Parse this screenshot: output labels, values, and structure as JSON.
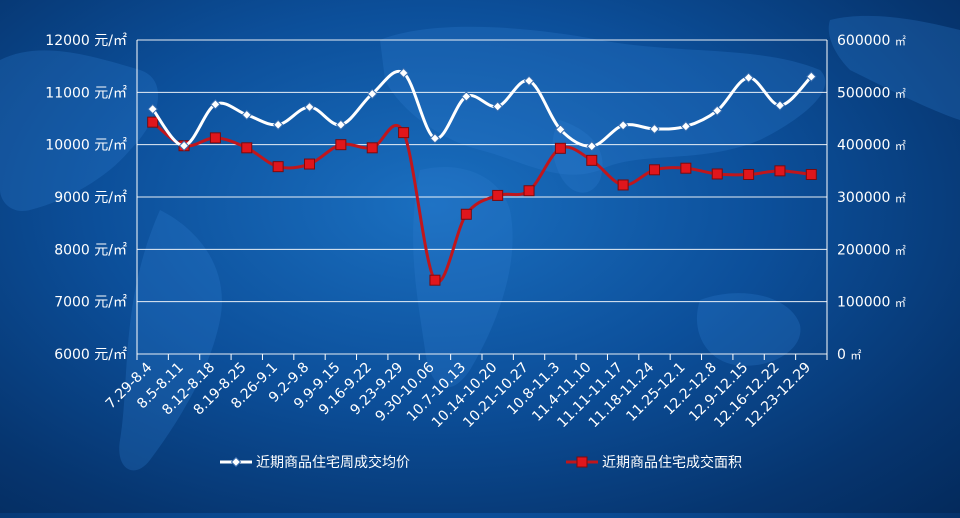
{
  "colors": {
    "background": "#0c4f9a",
    "price_line": "#ffffff",
    "area_line": "#c0161c",
    "area_marker": "#e0161c",
    "grid": "#ffffff"
  },
  "chart_data": {
    "type": "line",
    "categories": [
      "7.29-8.4",
      "8.5-8.11",
      "8.12-8.18",
      "8.19-8.25",
      "8.26-9.1",
      "9.2-9.8",
      "9.9-9.15",
      "9.16-9.22",
      "9.23-9.29",
      "9.30-10.06",
      "10.7-10.13",
      "10.14-10.20",
      "10.21-10.27",
      "10.8-11.3",
      "11.4-11.10",
      "11.11-11.17",
      "11.18-11.24",
      "11.25-12.1",
      "12.2-12.8",
      "12.9-12.15",
      "12.16-12.22",
      "12.23-12.29"
    ],
    "y_left": {
      "ylim": [
        6000,
        12000
      ],
      "ticks": [
        6000,
        7000,
        8000,
        9000,
        10000,
        11000,
        12000
      ],
      "unit": "元/㎡"
    },
    "y_right": {
      "ylim": [
        0,
        600000
      ],
      "ticks": [
        0,
        100000,
        200000,
        300000,
        400000,
        500000,
        600000
      ],
      "unit": "㎡"
    },
    "grid": true,
    "legend_position": "bottom",
    "series": [
      {
        "name": "近期商品住宅周成交均价",
        "axis": "left",
        "marker": "diamond",
        "smooth": true,
        "values": [
          10680,
          9980,
          10770,
          10570,
          10380,
          10720,
          10380,
          10970,
          11370,
          10120,
          10920,
          10730,
          11220,
          10290,
          9970,
          10370,
          10300,
          10350,
          10650,
          11280,
          10750,
          11300
        ]
      },
      {
        "name": "近期商品住宅成交面积",
        "axis": "right",
        "marker": "square",
        "smooth": true,
        "values": [
          443000,
          398000,
          413000,
          394000,
          358000,
          363000,
          400000,
          394000,
          423000,
          141000,
          267000,
          303000,
          312000,
          393000,
          370000,
          323000,
          352000,
          355000,
          344000,
          343000,
          350000,
          343000
        ]
      }
    ]
  }
}
